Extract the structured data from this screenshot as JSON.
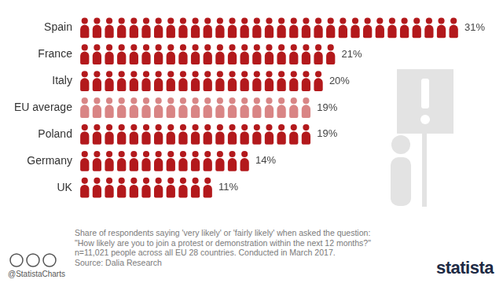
{
  "chart_data": {
    "type": "bar",
    "orientation": "horizontal",
    "categories": [
      "Spain",
      "France",
      "Italy",
      "EU average",
      "Poland",
      "Germany",
      "UK"
    ],
    "values": [
      31,
      21,
      20,
      19,
      19,
      14,
      11
    ],
    "value_labels": [
      "31%",
      "21%",
      "20%",
      "19%",
      "19%",
      "14%",
      "11%"
    ],
    "data_labels": true,
    "colors": [
      "#b3191c",
      "#b3191c",
      "#b3191c",
      "#d98585",
      "#b3191c",
      "#b3191c",
      "#b3191c"
    ],
    "grid": false,
    "tick_labels": "y",
    "note": [
      "Share of respondents saying 'very likely' or 'fairly likely' when asked the question:",
      "\"How likely are you to join a protest or demonstration within the next 12 months?\"",
      "n=11,021 people across all EU 28 countries. Conducted in March 2017.",
      "Source: Dalia Research"
    ],
    "credit": "@StatistaCharts",
    "brand": "statista"
  }
}
